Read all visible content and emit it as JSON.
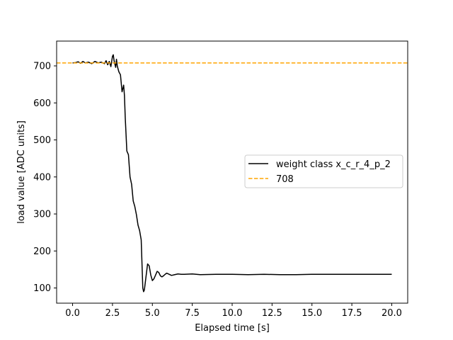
{
  "chart_data": {
    "type": "line",
    "title": "",
    "xlabel": "Elapsed time [s]",
    "ylabel": "load value [ADC units]",
    "xlim": [
      -1.0,
      21.0
    ],
    "ylim": [
      59,
      767
    ],
    "xticks": [
      0.0,
      2.5,
      5.0,
      7.5,
      10.0,
      12.5,
      15.0,
      17.5,
      20.0
    ],
    "xtick_labels": [
      "0.0",
      "2.5",
      "5.0",
      "7.5",
      "10.0",
      "12.5",
      "15.0",
      "17.5",
      "20.0"
    ],
    "yticks": [
      100,
      200,
      300,
      400,
      500,
      600,
      700
    ],
    "ytick_labels": [
      "100",
      "200",
      "300",
      "400",
      "500",
      "600",
      "700"
    ],
    "grid": false,
    "legend_position": "center-right",
    "series": [
      {
        "name": "weight class x_c_r_4_p_2",
        "color": "#000000",
        "style": "solid",
        "x": [
          0.0,
          0.2,
          0.35,
          0.5,
          0.65,
          0.8,
          1.0,
          1.2,
          1.4,
          1.6,
          1.8,
          2.0,
          2.1,
          2.2,
          2.3,
          2.4,
          2.5,
          2.55,
          2.6,
          2.7,
          2.75,
          2.8,
          2.9,
          3.0,
          3.1,
          3.2,
          3.25,
          3.3,
          3.4,
          3.5,
          3.6,
          3.7,
          3.8,
          3.9,
          4.0,
          4.1,
          4.2,
          4.3,
          4.4,
          4.45,
          4.5,
          4.6,
          4.7,
          4.8,
          4.9,
          5.0,
          5.1,
          5.2,
          5.3,
          5.4,
          5.5,
          5.6,
          5.7,
          5.8,
          5.9,
          6.0,
          6.2,
          6.4,
          6.6,
          6.8,
          7.0,
          7.5,
          8.0,
          9.0,
          10.0,
          11.0,
          12.0,
          13.0,
          14.0,
          15.0,
          16.0,
          17.0,
          18.0,
          19.0,
          19.5,
          20.0
        ],
        "y": [
          708,
          709,
          711,
          707,
          712,
          708,
          710,
          706,
          712,
          708,
          710,
          706,
          714,
          703,
          712,
          698,
          726,
          730,
          714,
          696,
          718,
          700,
          684,
          676,
          630,
          648,
          620,
          560,
          470,
          460,
          400,
          380,
          335,
          320,
          298,
          270,
          255,
          230,
          100,
          90,
          95,
          130,
          165,
          160,
          135,
          120,
          125,
          135,
          145,
          142,
          133,
          130,
          133,
          137,
          140,
          138,
          134,
          136,
          138,
          137,
          137,
          138,
          136,
          137,
          137,
          136,
          137,
          136,
          136,
          137,
          137,
          137,
          137,
          137,
          137,
          137
        ]
      },
      {
        "name": "708",
        "color": "#ffa500",
        "style": "dashed",
        "hline": 708
      }
    ]
  }
}
